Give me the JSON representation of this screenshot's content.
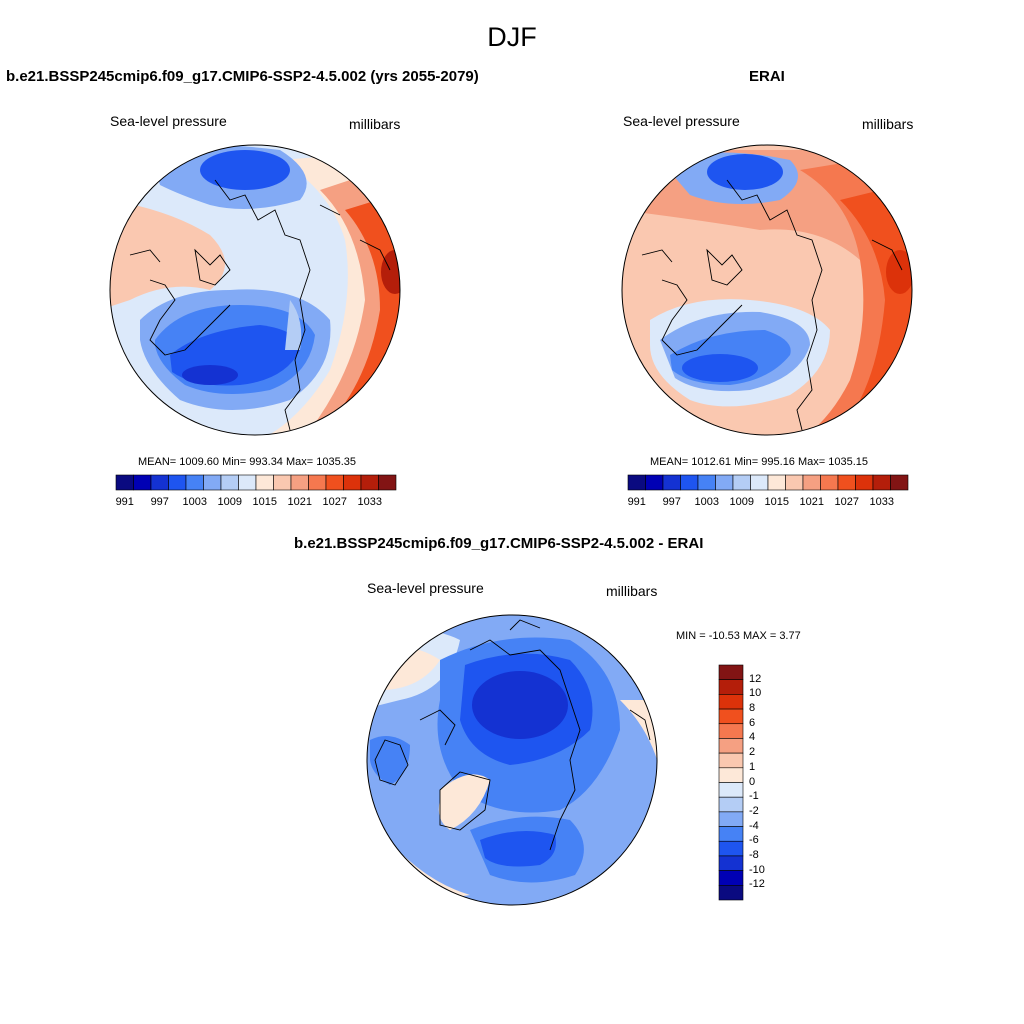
{
  "figure": {
    "title": "DJF"
  },
  "panels": [
    {
      "title": "b.e21.BSSP245cmip6.f09_g17.CMIP6-SSP2-4.5.002 (yrs 2055-2079)",
      "variable": "Sea-level pressure",
      "units": "millibars",
      "stats": "MEAN= 1009.60  Min= 993.34  Max= 1035.35"
    },
    {
      "title": "ERAI",
      "variable": "Sea-level pressure",
      "units": "millibars",
      "stats": "MEAN= 1012.61  Min= 995.16  Max= 1035.15"
    },
    {
      "title": "b.e21.BSSP245cmip6.f09_g17.CMIP6-SSP2-4.5.002 - ERAI",
      "variable": "Sea-level pressure",
      "units": "millibars",
      "stats": "MIN = -10.53 MAX =   3.77"
    }
  ],
  "colorbar_abs": {
    "colors": [
      "#0a0a80",
      "#0000b4",
      "#1432d2",
      "#1e55f0",
      "#4682f5",
      "#82aaf5",
      "#b4cdf5",
      "#dce9fa",
      "#fde8d8",
      "#fac8b0",
      "#f5a082",
      "#f5784f",
      "#f0501e",
      "#dc320a",
      "#b41e0a",
      "#821414"
    ],
    "tick_labels": [
      "991",
      "997",
      "1003",
      "1009",
      "1015",
      "1021",
      "1027",
      "1033"
    ]
  },
  "colorbar_diff": {
    "colors": [
      "#821414",
      "#b41e0a",
      "#dc320a",
      "#f0501e",
      "#f5784f",
      "#f5a082",
      "#fac8b0",
      "#fde8d8",
      "#dce9fa",
      "#b4cdf5",
      "#82aaf5",
      "#4682f5",
      "#1e55f0",
      "#1432d2",
      "#0000b4",
      "#0a0a80"
    ],
    "tick_labels": [
      "12",
      "10",
      "8",
      "6",
      "4",
      "2",
      "1",
      "0",
      "-1",
      "-2",
      "-4",
      "-6",
      "-8",
      "-10",
      "-12"
    ]
  }
}
